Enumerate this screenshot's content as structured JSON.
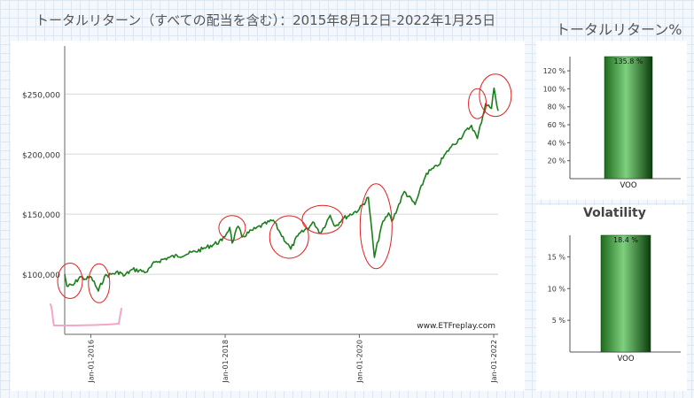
{
  "main_chart": {
    "title": "トータルリターン（すべての配当を含む）：2015年8月12日-2022年1月25日",
    "watermark": "www.ETFreplay.com",
    "line_color": "#1a7f1a",
    "annotation_color": "#e02020",
    "bracket_color": "#f4a6c8"
  },
  "returns_panel": {
    "title": "トータルリターン%"
  },
  "volatility_panel": {
    "title": "Volatility"
  },
  "chart_data": [
    {
      "type": "line",
      "y_tick_labels": [
        "$100,000",
        "$150,000",
        "$200,000",
        "$250,000"
      ],
      "y_ticks": [
        100000,
        150000,
        200000,
        250000
      ],
      "ylim": [
        50000,
        290000
      ],
      "x_tick_labels": [
        "Jan-01-2016",
        "Jan-01-2018",
        "Jan-01-2020",
        "Jan-01-2022"
      ],
      "x_ticks": [
        "2016-01-01",
        "2018-01-01",
        "2020-01-01",
        "2022-01-01"
      ],
      "xlim": [
        "2015-08-12",
        "2022-01-25"
      ],
      "grid": "horizontal",
      "series": [
        {
          "x": [
            "2015-08-12",
            "2015-08-24",
            "2015-09-28",
            "2015-11-03",
            "2015-12-01",
            "2016-01-04",
            "2016-02-11",
            "2016-03-15",
            "2016-04-20",
            "2016-06-08",
            "2016-06-27",
            "2016-08-15",
            "2016-11-03",
            "2016-12-15",
            "2017-03-01",
            "2017-06-15",
            "2017-09-01",
            "2017-12-15",
            "2018-01-26",
            "2018-02-08",
            "2018-03-12",
            "2018-04-02",
            "2018-06-15",
            "2018-09-20",
            "2018-10-29",
            "2018-12-24",
            "2019-01-31",
            "2019-04-30",
            "2019-06-03",
            "2019-07-26",
            "2019-08-23",
            "2019-10-01",
            "2019-12-31",
            "2020-02-19",
            "2020-03-23",
            "2020-04-30",
            "2020-06-08",
            "2020-06-26",
            "2020-09-02",
            "2020-10-30",
            "2020-12-31",
            "2021-03-01",
            "2021-05-07",
            "2021-06-30",
            "2021-09-02",
            "2021-10-04",
            "2021-11-18",
            "2021-12-20",
            "2022-01-03",
            "2022-01-25"
          ],
          "y": [
            100000,
            90000,
            91000,
            98000,
            96000,
            97500,
            86000,
            98000,
            100000,
            102000,
            98500,
            104000,
            102000,
            110000,
            114000,
            117000,
            121000,
            128000,
            139000,
            126000,
            140000,
            131000,
            138000,
            145000,
            134000,
            121000,
            132000,
            143000,
            134000,
            149000,
            140000,
            146000,
            154000,
            164000,
            114000,
            140000,
            151000,
            144000,
            169000,
            158000,
            184000,
            190000,
            205000,
            213000,
            224000,
            213000,
            242000,
            238000,
            255000,
            236000
          ]
        }
      ],
      "annotations": [
        {
          "type": "ellipse",
          "x": "2015-09-10",
          "y": 94500
        },
        {
          "type": "ellipse",
          "x": "2016-02-15",
          "y": 92500
        },
        {
          "type": "ellipse",
          "x": "2018-02-08",
          "y": 138500
        },
        {
          "type": "ellipse",
          "x": "2018-12-15",
          "y": 131000
        },
        {
          "type": "ellipse",
          "x": "2019-06-15",
          "y": 145500
        },
        {
          "type": "ellipse",
          "x": "2020-04-01",
          "y": 140000
        },
        {
          "type": "ellipse",
          "x": "2021-10-04",
          "y": 242000
        },
        {
          "type": "ellipse",
          "x": "2022-01-10",
          "y": 249000
        }
      ]
    },
    {
      "type": "bar",
      "title": "トータルリターン%",
      "categories": [
        "VOO"
      ],
      "values": [
        135.8
      ],
      "data_labels": [
        "135.8 %"
      ],
      "y_tick_labels": [
        "20 %",
        "40 %",
        "60 %",
        "80 %",
        "100 %",
        "120 %"
      ],
      "y_ticks": [
        20,
        40,
        60,
        80,
        100,
        120
      ],
      "ylim": [
        0,
        135.8
      ]
    },
    {
      "type": "bar",
      "title": "Volatility",
      "categories": [
        "VOO"
      ],
      "values": [
        18.4
      ],
      "data_labels": [
        "18.4 %"
      ],
      "y_tick_labels": [
        "5 %",
        "10 %",
        "15 %"
      ],
      "y_ticks": [
        5,
        10,
        15
      ],
      "ylim": [
        0,
        18.4
      ]
    }
  ]
}
